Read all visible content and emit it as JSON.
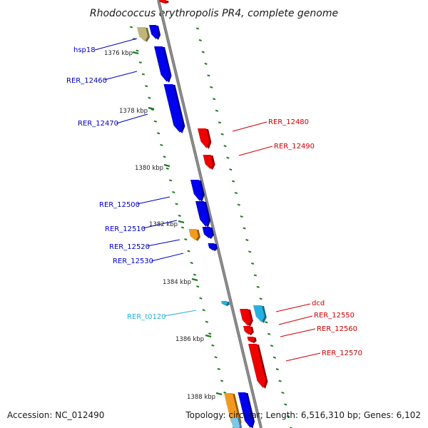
{
  "title": "Rhodococcus erythropolis PR4, complete genome",
  "accession": "Accession: NC_012490",
  "summary": "Topology: circular; Length: 6,516,310 bp; Genes: 6,102",
  "colors": {
    "forward": "#0000ee",
    "reverse": "#ee0000",
    "rna": "#2ab0e0",
    "pseudo": "#bdb57a",
    "misc": "#f39a1c",
    "backbone": "#8c8c8c",
    "ticks": "#1f7a1f"
  },
  "kbp_labels": [
    "1376 kbp",
    "1378 kbp",
    "1380 kbp",
    "1382 kbp",
    "1384 kbp",
    "1386 kbp",
    "1388 kbp"
  ],
  "gene_labels": {
    "hsp18": "hsp18",
    "RER_12460": "RER_12460",
    "RER_12470": "RER_12470",
    "RER_12480": "RER_12480",
    "RER_12490": "RER_12490",
    "RER_12500": "RER_12500",
    "RER_12510": "RER_12510",
    "RER_12520": "RER_12520",
    "RER_12530": "RER_12530",
    "RER_t0120": "RER_t0120",
    "dcd": "dcd",
    "RER_12550": "RER_12550",
    "RER_12560": "RER_12560",
    "RER_12570": "RER_12570"
  }
}
